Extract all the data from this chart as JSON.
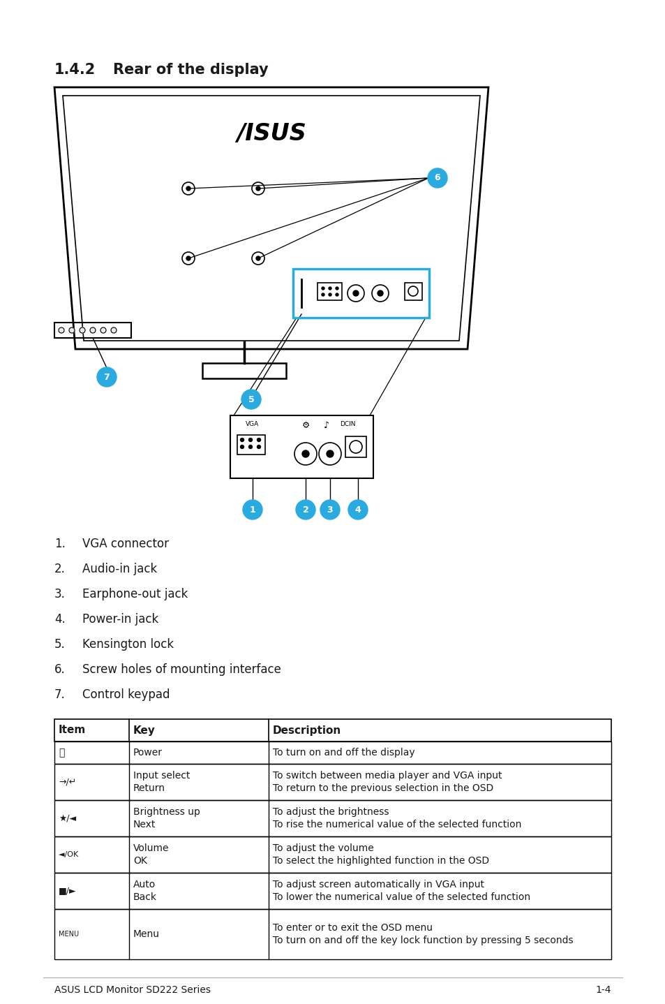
{
  "section_number": "1.4.2",
  "section_title": "Rear of the display",
  "list_items": [
    "VGA connector",
    "Audio-in jack",
    "Earphone-out jack",
    "Power-in jack",
    "Kensington lock",
    "Screw holes of mounting interface",
    "Control keypad"
  ],
  "table_headers": [
    "Item",
    "Key",
    "Description"
  ],
  "row_keys": [
    "Power",
    "Input select\nReturn",
    "Brightness up\nNext",
    "Volume\nOK",
    "Auto\nBack",
    "Menu"
  ],
  "row_symbols": [
    "⏻",
    "≡/↵",
    "✱/◄",
    "◄/OK",
    "■/►",
    "MENU"
  ],
  "row_descs": [
    "To turn on and off the display",
    "To switch between media player and VGA input\nTo return to the previous selection in the OSD",
    "To adjust the brightness\nTo rise the numerical value of the selected function",
    "To adjust the volume\nTo select the highlighted function in the OSD",
    "To adjust screen automatically in VGA input\nTo lower the numerical value of the selected function",
    "To enter or to exit the OSD menu\nTo turn on and off the key lock function by pressing 5 seconds"
  ],
  "footer_left": "ASUS LCD Monitor SD222 Series",
  "footer_right": "1-4",
  "bg_color": "#ffffff",
  "text_color": "#1a1a1a",
  "circle_color": "#29abe2",
  "circle_text_color": "#ffffff"
}
